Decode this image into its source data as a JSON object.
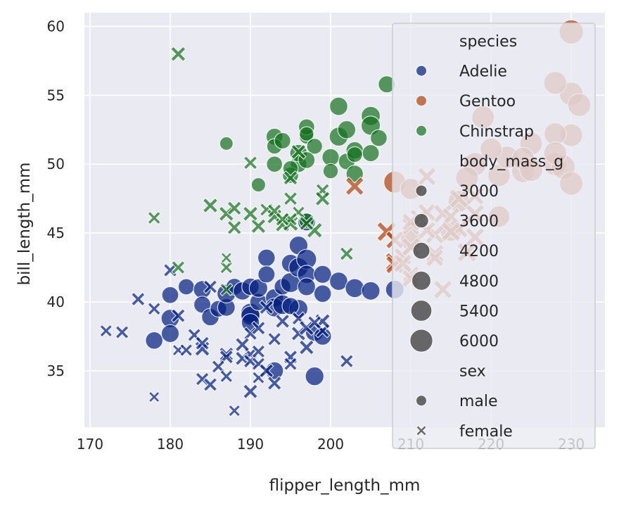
{
  "chart_data": {
    "type": "scatter",
    "title": "",
    "xlabel": "flipper_length_mm",
    "ylabel": "bill_length_mm",
    "xlim": [
      169.3,
      234.2
    ],
    "ylim": [
      30.9,
      61.0
    ],
    "xticks": [
      170,
      180,
      190,
      200,
      210,
      220,
      230
    ],
    "yticks": [
      35,
      40,
      45,
      50,
      55,
      60
    ],
    "grid": true,
    "legend_placement": "right",
    "hue": "species",
    "size": "body_mass_g",
    "style": "sex",
    "colors": {
      "Adelie": "#001c7f",
      "Gentoo": "#b1400d",
      "Chinstrap": "#12711c"
    },
    "legend": {
      "species_title": "species",
      "species": [
        "Adelie",
        "Gentoo",
        "Chinstrap"
      ],
      "size_title": "body_mass_g",
      "sizes": [
        3000,
        3600,
        4200,
        4800,
        5400,
        6000
      ],
      "sex_title": "sex",
      "sexes": [
        "male",
        "female"
      ]
    },
    "series": [
      {
        "species": "Adelie",
        "sex": "male",
        "points": [
          [
            178,
            37.2,
            4100
          ],
          [
            180,
            40.5,
            3950
          ],
          [
            180,
            38.8,
            4300
          ],
          [
            182,
            41.1,
            3800
          ],
          [
            184,
            40.9,
            4200
          ],
          [
            184,
            39.8,
            4000
          ],
          [
            185,
            38.9,
            4100
          ],
          [
            186,
            39.5,
            3900
          ],
          [
            187,
            39.6,
            4150
          ],
          [
            187,
            40.6,
            4400
          ],
          [
            188,
            41.1,
            3950
          ],
          [
            189,
            40.8,
            4300
          ],
          [
            190,
            41.1,
            4100
          ],
          [
            190,
            39.2,
            4600
          ],
          [
            190,
            39.0,
            4500
          ],
          [
            190,
            38.5,
            4250
          ],
          [
            191,
            40.0,
            4050
          ],
          [
            191,
            41.0,
            4350
          ],
          [
            192,
            43.2,
            4100
          ],
          [
            192,
            42.0,
            4000
          ],
          [
            193,
            40.3,
            4250
          ],
          [
            193,
            39.6,
            4450
          ],
          [
            194,
            41.1,
            3900
          ],
          [
            194,
            39.8,
            4650
          ],
          [
            193,
            35.0,
            4200
          ],
          [
            195,
            41.4,
            4700
          ],
          [
            195,
            42.8,
            4250
          ],
          [
            196,
            44.1,
            4400
          ],
          [
            196,
            42.5,
            4600
          ],
          [
            197,
            43.1,
            4750
          ],
          [
            197,
            42.0,
            4300
          ],
          [
            196,
            39.5,
            4400
          ],
          [
            197,
            41.1,
            4200
          ],
          [
            198,
            37.8,
            4300
          ],
          [
            199,
            37.5,
            4150
          ],
          [
            199,
            40.6,
            4100
          ],
          [
            199,
            42.0,
            4200
          ],
          [
            201,
            41.5,
            4300
          ],
          [
            203,
            41.0,
            4475
          ],
          [
            205,
            40.8,
            4350
          ],
          [
            198,
            34.6,
            4400
          ],
          [
            197,
            45.8,
            4150
          ],
          [
            208,
            40.9,
            4350
          ],
          [
            180,
            37.7,
            4200
          ],
          [
            195,
            39.7,
            4000
          ]
        ]
      },
      {
        "species": "Adelie",
        "sex": "female",
        "points": [
          [
            172,
            37.9,
            3150
          ],
          [
            174,
            37.8,
            3300
          ],
          [
            176,
            40.2,
            3400
          ],
          [
            178,
            39.5,
            3250
          ],
          [
            178,
            33.1,
            2900
          ],
          [
            180,
            42.3,
            3350
          ],
          [
            181,
            39.0,
            3450
          ],
          [
            181,
            36.5,
            3000
          ],
          [
            182,
            36.5,
            3200
          ],
          [
            183,
            37.6,
            3300
          ],
          [
            184,
            34.4,
            3325
          ],
          [
            184,
            36.6,
            3700
          ],
          [
            184,
            37.0,
            3450
          ],
          [
            185,
            34.0,
            3400
          ],
          [
            187,
            36.2,
            3550
          ],
          [
            187,
            36.0,
            3450
          ],
          [
            186,
            35.3,
            3300
          ],
          [
            187,
            34.6,
            3200
          ],
          [
            188,
            32.1,
            3050
          ],
          [
            189,
            35.9,
            3550
          ],
          [
            190,
            36.2,
            3300
          ],
          [
            190,
            33.5,
            3600
          ],
          [
            190,
            37.7,
            3350
          ],
          [
            190,
            35.7,
            3450
          ],
          [
            189,
            36.9,
            3500
          ],
          [
            191,
            36.4,
            3325
          ],
          [
            191,
            34.5,
            3150
          ],
          [
            191,
            35.5,
            3300
          ],
          [
            191,
            38.1,
            3425
          ],
          [
            192,
            35.0,
            3500
          ],
          [
            193,
            34.1,
            3475
          ],
          [
            193,
            37.3,
            3350
          ],
          [
            195,
            36.0,
            3450
          ],
          [
            194,
            38.6,
            3525
          ],
          [
            195,
            35.5,
            3300
          ],
          [
            196,
            37.7,
            3600
          ],
          [
            196,
            38.8,
            3325
          ],
          [
            197,
            38.1,
            3700
          ],
          [
            197,
            36.7,
            3650
          ],
          [
            199,
            37.9,
            3475
          ],
          [
            199,
            38.6,
            3750
          ],
          [
            202,
            35.7,
            3350
          ],
          [
            198,
            38.5,
            3400
          ],
          [
            192,
            39.6,
            3500
          ],
          [
            185,
            41.1,
            3400
          ]
        ]
      },
      {
        "species": "Chinstrap",
        "sex": "male",
        "points": [
          [
            187,
            51.5,
            3250
          ],
          [
            191,
            48.5,
            3400
          ],
          [
            196,
            50.0,
            3900
          ],
          [
            193,
            52.0,
            3950
          ],
          [
            193,
            51.3,
            3650
          ],
          [
            197,
            52.0,
            3500
          ],
          [
            200,
            50.5,
            4050
          ],
          [
            195,
            49.2,
            3800
          ],
          [
            194,
            51.7,
            3850
          ],
          [
            197,
            52.7,
            3800
          ],
          [
            197,
            52.2,
            3450
          ],
          [
            193,
            50.0,
            3775
          ],
          [
            195,
            49.7,
            3600
          ],
          [
            196,
            50.8,
            4100
          ],
          [
            198,
            51.3,
            3725
          ],
          [
            201,
            52.0,
            4450
          ],
          [
            202,
            50.2,
            3900
          ],
          [
            203,
            51.0,
            4100
          ],
          [
            201,
            54.2,
            4300
          ],
          [
            200,
            49.5,
            3600
          ],
          [
            205,
            50.8,
            4000
          ],
          [
            205,
            53.5,
            4500
          ],
          [
            205,
            52.8,
            4550
          ],
          [
            206,
            51.9,
            3950
          ],
          [
            207,
            55.8,
            4000
          ],
          [
            203,
            50.7,
            3700
          ],
          [
            203,
            49.3,
            4050
          ],
          [
            202,
            52.5,
            4250
          ],
          [
            197,
            50.3,
            3950
          ],
          [
            197,
            45.9,
            3600
          ]
        ]
      },
      {
        "species": "Chinstrap",
        "sex": "female",
        "points": [
          [
            181,
            58.0,
            3700
          ],
          [
            178,
            46.1,
            3250
          ],
          [
            181,
            42.5,
            3350
          ],
          [
            185,
            47.0,
            3700
          ],
          [
            187,
            46.4,
            3700
          ],
          [
            188,
            45.4,
            3525
          ],
          [
            188,
            46.8,
            3500
          ],
          [
            191,
            45.5,
            3650
          ],
          [
            192,
            46.7,
            3300
          ],
          [
            193,
            46.2,
            3700
          ],
          [
            194,
            45.6,
            3550
          ],
          [
            195,
            47.5,
            3400
          ],
          [
            193,
            46.6,
            3475
          ],
          [
            195,
            45.7,
            3900
          ],
          [
            196,
            46.5,
            3200
          ],
          [
            198,
            45.2,
            3850
          ],
          [
            199,
            48.1,
            3400
          ],
          [
            199,
            47.5,
            3650
          ],
          [
            202,
            43.5,
            3400
          ],
          [
            190,
            50.1,
            3400
          ],
          [
            187,
            42.5,
            3200
          ],
          [
            187,
            43.2,
            2900
          ],
          [
            187,
            40.9,
            3200
          ],
          [
            195,
            46.0,
            3400
          ],
          [
            197,
            45.7,
            3525
          ],
          [
            190,
            46.4,
            3700
          ],
          [
            195,
            49.0,
            3550
          ],
          [
            196,
            50.9,
            3675
          ],
          [
            194,
            46.0,
            3450
          ]
        ]
      },
      {
        "species": "Gentoo",
        "sex": "male",
        "points": [
          [
            230,
            59.6,
            6050
          ],
          [
            230,
            55.1,
            5850
          ],
          [
            231,
            54.3,
            5650
          ],
          [
            230,
            52.1,
            5550
          ],
          [
            228,
            50.0,
            5600
          ],
          [
            228,
            55.9,
            5600
          ],
          [
            219,
            53.4,
            5500
          ],
          [
            228,
            52.2,
            5400
          ],
          [
            221,
            49.2,
            5500
          ],
          [
            225,
            51.5,
            5500
          ],
          [
            222,
            50.5,
            5400
          ],
          [
            224,
            49.5,
            5650
          ],
          [
            224,
            50.4,
            5550
          ],
          [
            208,
            48.7,
            5350
          ],
          [
            210,
            48.2,
            5100
          ],
          [
            216,
            47.3,
            5250
          ],
          [
            218,
            50.0,
            5700
          ],
          [
            220,
            51.1,
            5300
          ],
          [
            229,
            49.8,
            5950
          ],
          [
            230,
            48.6,
            5800
          ],
          [
            215,
            45.2,
            5300
          ],
          [
            225,
            49.6,
            5700
          ],
          [
            228,
            50.8,
            5600
          ],
          [
            221,
            46.2,
            5150
          ],
          [
            217,
            49.0,
            5550
          ],
          [
            210,
            44.5,
            5000
          ]
        ]
      },
      {
        "species": "Gentoo",
        "sex": "female",
        "points": [
          [
            203,
            48.4,
            4600
          ],
          [
            207,
            45.1,
            5000
          ],
          [
            208,
            44.5,
            4450
          ],
          [
            208,
            42.9,
            4700
          ],
          [
            211,
            46.1,
            4400
          ],
          [
            209,
            43.3,
            4400
          ],
          [
            210,
            44.0,
            4700
          ],
          [
            210,
            45.5,
            4500
          ],
          [
            212,
            46.5,
            4500
          ],
          [
            210,
            42.0,
            4150
          ],
          [
            217,
            43.6,
            4900
          ],
          [
            213,
            44.9,
            4750
          ],
          [
            216,
            45.3,
            4550
          ],
          [
            214,
            46.4,
            4800
          ],
          [
            216,
            47.5,
            4875
          ],
          [
            213,
            43.5,
            4650
          ],
          [
            215,
            46.2,
            4500
          ],
          [
            218,
            44.7,
            4850
          ],
          [
            215,
            45.1,
            5000
          ],
          [
            208,
            42.7,
            4500
          ],
          [
            210,
            41.7,
            4450
          ],
          [
            213,
            43.2,
            4450
          ],
          [
            214,
            40.9,
            4650
          ],
          [
            210,
            45.8,
            4500
          ],
          [
            218,
            46.4,
            4750
          ],
          [
            218,
            47.7,
            4600
          ],
          [
            209,
            42.8,
            4700
          ],
          [
            212,
            45.2,
            4400
          ],
          [
            212,
            49.1,
            4625
          ]
        ]
      }
    ]
  }
}
